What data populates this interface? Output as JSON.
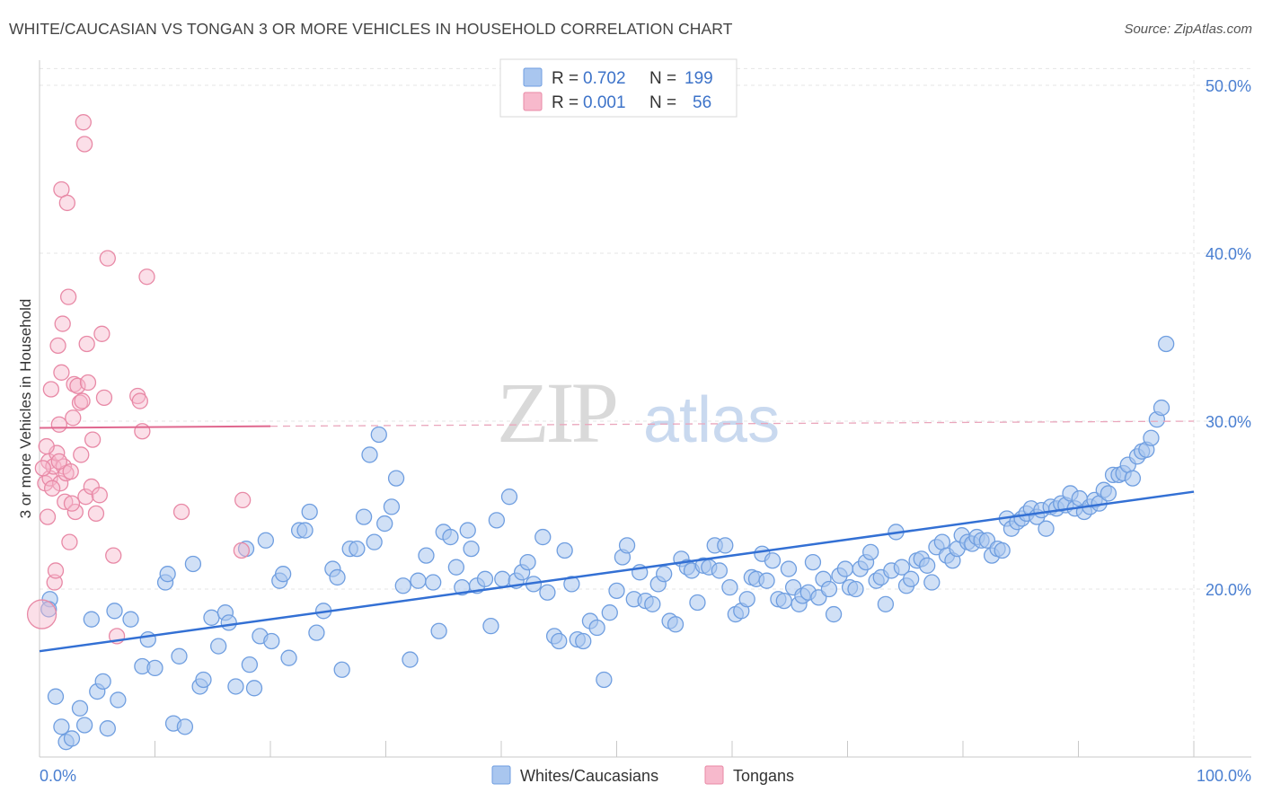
{
  "title": "WHITE/CAUCASIAN VS TONGAN 3 OR MORE VEHICLES IN HOUSEHOLD CORRELATION CHART",
  "source": "Source: ZipAtlas.com",
  "watermark": {
    "zip": "ZIP",
    "atlas": "atlas"
  },
  "legend": {
    "r_label": "R = ",
    "n_label": "N = ",
    "items": [
      {
        "r": "0.702",
        "n": "199",
        "color": "#a9c6ef",
        "stroke": "#6f9ee0"
      },
      {
        "r": "0.001",
        "n": "56",
        "color": "#f7b9cc",
        "stroke": "#e889a6"
      }
    ]
  },
  "bottom_legend": [
    {
      "name": "Whites/Caucasians",
      "color": "#a9c6ef",
      "stroke": "#6f9ee0"
    },
    {
      "name": "Tongans",
      "color": "#f7b9cc",
      "stroke": "#e889a6"
    }
  ],
  "chart_data": {
    "type": "scatter",
    "title": "WHITE/CAUCASIAN VS TONGAN 3 OR MORE VEHICLES IN HOUSEHOLD CORRELATION CHART",
    "xlabel": "",
    "ylabel": "3 or more Vehicles in Household",
    "xlim": [
      0,
      100
    ],
    "ylim": [
      10,
      51.5
    ],
    "x_ticks": [
      0,
      100
    ],
    "x_tick_labels": [
      "0.0%",
      "100.0%"
    ],
    "y_ticks": [
      20,
      30,
      40,
      50
    ],
    "y_tick_labels": [
      "20.0%",
      "30.0%",
      "40.0%",
      "50.0%"
    ],
    "grid": true,
    "legend_placement": "top-center",
    "colors": {
      "white": "#3370d4",
      "tongan": "#e0688f"
    },
    "series": [
      {
        "name": "Whites/Caucasians",
        "r": 0.702,
        "n": 199,
        "trend": {
          "x": [
            0,
            100
          ],
          "y": [
            16.3,
            25.8
          ]
        },
        "points": [
          [
            0.9,
            19.4
          ],
          [
            1.4,
            13.6
          ],
          [
            1.9,
            11.8
          ],
          [
            2.3,
            10.9
          ],
          [
            2.8,
            11.1
          ],
          [
            3.5,
            12.9
          ],
          [
            3.9,
            11.9
          ],
          [
            4.5,
            18.2
          ],
          [
            5.0,
            13.9
          ],
          [
            5.5,
            14.5
          ],
          [
            5.9,
            11.7
          ],
          [
            6.5,
            18.7
          ],
          [
            6.8,
            13.4
          ],
          [
            7.9,
            18.2
          ],
          [
            8.9,
            15.4
          ],
          [
            9.4,
            17.0
          ],
          [
            10.0,
            15.3
          ],
          [
            10.9,
            20.4
          ],
          [
            11.1,
            20.9
          ],
          [
            11.6,
            12.0
          ],
          [
            12.1,
            16.0
          ],
          [
            12.6,
            11.8
          ],
          [
            13.3,
            21.5
          ],
          [
            13.9,
            14.2
          ],
          [
            14.2,
            14.6
          ],
          [
            14.9,
            18.3
          ],
          [
            15.5,
            16.6
          ],
          [
            16.1,
            18.6
          ],
          [
            16.4,
            18.0
          ],
          [
            17.0,
            14.2
          ],
          [
            17.9,
            22.4
          ],
          [
            18.2,
            15.5
          ],
          [
            18.6,
            14.1
          ],
          [
            19.1,
            17.2
          ],
          [
            19.6,
            22.9
          ],
          [
            20.1,
            16.9
          ],
          [
            20.8,
            20.5
          ],
          [
            21.1,
            20.9
          ],
          [
            21.6,
            15.9
          ],
          [
            22.5,
            23.5
          ],
          [
            23.0,
            23.5
          ],
          [
            23.4,
            24.6
          ],
          [
            24.0,
            17.4
          ],
          [
            24.6,
            18.7
          ],
          [
            25.4,
            21.2
          ],
          [
            25.8,
            20.7
          ],
          [
            26.2,
            15.2
          ],
          [
            26.9,
            22.4
          ],
          [
            27.5,
            22.4
          ],
          [
            28.1,
            24.3
          ],
          [
            28.6,
            28.0
          ],
          [
            29.0,
            22.8
          ],
          [
            29.4,
            29.2
          ],
          [
            29.9,
            23.9
          ],
          [
            30.5,
            24.9
          ],
          [
            30.9,
            26.6
          ],
          [
            31.5,
            20.2
          ],
          [
            32.1,
            15.8
          ],
          [
            32.8,
            20.5
          ],
          [
            33.5,
            22.0
          ],
          [
            34.1,
            20.4
          ],
          [
            34.6,
            17.5
          ],
          [
            35.0,
            23.4
          ],
          [
            35.6,
            23.1
          ],
          [
            36.1,
            21.3
          ],
          [
            36.6,
            20.1
          ],
          [
            37.1,
            23.5
          ],
          [
            37.4,
            22.4
          ],
          [
            37.9,
            20.2
          ],
          [
            38.6,
            20.6
          ],
          [
            39.1,
            17.8
          ],
          [
            39.6,
            24.1
          ],
          [
            40.1,
            20.6
          ],
          [
            40.7,
            25.5
          ],
          [
            41.3,
            20.5
          ],
          [
            41.8,
            21.0
          ],
          [
            42.3,
            21.6
          ],
          [
            42.8,
            20.3
          ],
          [
            43.6,
            23.1
          ],
          [
            44.0,
            19.8
          ],
          [
            44.6,
            17.2
          ],
          [
            45.0,
            16.9
          ],
          [
            45.5,
            22.3
          ],
          [
            46.1,
            20.3
          ],
          [
            46.6,
            17.0
          ],
          [
            47.1,
            16.9
          ],
          [
            47.7,
            18.1
          ],
          [
            48.3,
            17.7
          ],
          [
            48.9,
            14.6
          ],
          [
            49.4,
            18.6
          ],
          [
            50.0,
            19.9
          ],
          [
            50.5,
            21.9
          ],
          [
            50.9,
            22.6
          ],
          [
            51.5,
            19.4
          ],
          [
            52.0,
            21.0
          ],
          [
            52.5,
            19.3
          ],
          [
            53.1,
            19.1
          ],
          [
            53.6,
            20.3
          ],
          [
            54.1,
            20.9
          ],
          [
            54.6,
            18.1
          ],
          [
            55.1,
            17.9
          ],
          [
            55.6,
            21.8
          ],
          [
            56.1,
            21.3
          ],
          [
            56.5,
            21.1
          ],
          [
            57.0,
            19.2
          ],
          [
            57.5,
            21.4
          ],
          [
            58.0,
            21.3
          ],
          [
            58.5,
            22.6
          ],
          [
            58.9,
            21.1
          ],
          [
            59.4,
            22.6
          ],
          [
            59.8,
            20.1
          ],
          [
            60.3,
            18.5
          ],
          [
            60.8,
            18.7
          ],
          [
            61.3,
            19.4
          ],
          [
            61.7,
            20.7
          ],
          [
            62.1,
            20.6
          ],
          [
            62.6,
            22.1
          ],
          [
            63.0,
            20.5
          ],
          [
            63.5,
            21.7
          ],
          [
            64.0,
            19.4
          ],
          [
            64.5,
            19.3
          ],
          [
            64.9,
            21.2
          ],
          [
            65.3,
            20.1
          ],
          [
            65.8,
            19.1
          ],
          [
            66.1,
            19.6
          ],
          [
            66.6,
            19.8
          ],
          [
            67.0,
            21.6
          ],
          [
            67.5,
            19.5
          ],
          [
            67.9,
            20.6
          ],
          [
            68.4,
            20.0
          ],
          [
            68.8,
            18.5
          ],
          [
            69.3,
            20.8
          ],
          [
            69.8,
            21.2
          ],
          [
            70.2,
            20.1
          ],
          [
            70.7,
            20.0
          ],
          [
            71.1,
            21.2
          ],
          [
            71.6,
            21.6
          ],
          [
            72.0,
            22.2
          ],
          [
            72.5,
            20.5
          ],
          [
            72.9,
            20.7
          ],
          [
            73.3,
            19.1
          ],
          [
            73.8,
            21.1
          ],
          [
            74.2,
            23.4
          ],
          [
            74.7,
            21.3
          ],
          [
            75.1,
            20.2
          ],
          [
            75.5,
            20.6
          ],
          [
            76.0,
            21.7
          ],
          [
            76.4,
            21.8
          ],
          [
            76.9,
            21.4
          ],
          [
            77.3,
            20.4
          ],
          [
            77.7,
            22.5
          ],
          [
            78.2,
            22.8
          ],
          [
            78.6,
            22.0
          ],
          [
            79.1,
            21.7
          ],
          [
            79.5,
            22.4
          ],
          [
            79.9,
            23.2
          ],
          [
            80.4,
            22.8
          ],
          [
            80.8,
            22.7
          ],
          [
            81.2,
            23.1
          ],
          [
            81.6,
            22.9
          ],
          [
            82.1,
            22.9
          ],
          [
            82.5,
            22.0
          ],
          [
            83.0,
            22.4
          ],
          [
            83.4,
            22.3
          ],
          [
            83.8,
            24.2
          ],
          [
            84.2,
            23.6
          ],
          [
            84.7,
            24.0
          ],
          [
            85.1,
            24.2
          ],
          [
            85.5,
            24.5
          ],
          [
            85.9,
            24.8
          ],
          [
            86.4,
            24.3
          ],
          [
            86.8,
            24.7
          ],
          [
            87.2,
            23.6
          ],
          [
            87.6,
            24.9
          ],
          [
            88.1,
            24.8
          ],
          [
            88.5,
            25.1
          ],
          [
            88.9,
            25.0
          ],
          [
            89.3,
            25.7
          ],
          [
            89.7,
            24.8
          ],
          [
            90.1,
            25.4
          ],
          [
            90.5,
            24.6
          ],
          [
            91.0,
            24.9
          ],
          [
            91.4,
            25.3
          ],
          [
            91.8,
            25.1
          ],
          [
            92.2,
            25.9
          ],
          [
            92.6,
            25.7
          ],
          [
            93.0,
            26.8
          ],
          [
            93.5,
            26.8
          ],
          [
            93.9,
            26.9
          ],
          [
            94.3,
            27.4
          ],
          [
            94.7,
            26.6
          ],
          [
            95.1,
            27.9
          ],
          [
            95.5,
            28.2
          ],
          [
            95.9,
            28.3
          ],
          [
            96.3,
            29.0
          ],
          [
            96.8,
            30.1
          ],
          [
            97.2,
            30.8
          ],
          [
            97.6,
            34.6
          ],
          [
            0.8,
            18.8
          ]
        ]
      },
      {
        "name": "Tongans",
        "r": 0.001,
        "n": 56,
        "trend": {
          "x": [
            0,
            20
          ],
          "y": [
            29.6,
            29.7
          ]
        },
        "trend_dashed_extension": {
          "x": [
            20,
            100
          ],
          "y": [
            29.7,
            30.0
          ]
        },
        "points": [
          [
            0.2,
            18.5
          ],
          [
            0.5,
            26.3
          ],
          [
            0.7,
            24.3
          ],
          [
            0.8,
            27.6
          ],
          [
            0.9,
            26.6
          ],
          [
            1.0,
            31.9
          ],
          [
            1.2,
            27.3
          ],
          [
            1.3,
            20.4
          ],
          [
            1.4,
            21.1
          ],
          [
            1.5,
            28.1
          ],
          [
            1.6,
            34.5
          ],
          [
            1.7,
            29.8
          ],
          [
            1.8,
            26.3
          ],
          [
            1.9,
            32.9
          ],
          [
            1.9,
            43.8
          ],
          [
            2.0,
            35.8
          ],
          [
            2.1,
            27.3
          ],
          [
            2.2,
            25.2
          ],
          [
            2.3,
            26.9
          ],
          [
            2.4,
            43.0
          ],
          [
            2.5,
            37.4
          ],
          [
            2.6,
            22.8
          ],
          [
            2.7,
            27.0
          ],
          [
            2.9,
            30.2
          ],
          [
            3.0,
            32.2
          ],
          [
            3.1,
            24.6
          ],
          [
            3.3,
            32.1
          ],
          [
            3.5,
            31.1
          ],
          [
            3.7,
            31.2
          ],
          [
            3.8,
            47.8
          ],
          [
            3.9,
            46.5
          ],
          [
            4.0,
            25.5
          ],
          [
            4.1,
            34.6
          ],
          [
            4.2,
            32.3
          ],
          [
            4.5,
            26.1
          ],
          [
            4.6,
            28.9
          ],
          [
            4.9,
            24.5
          ],
          [
            5.2,
            25.6
          ],
          [
            5.4,
            35.2
          ],
          [
            5.6,
            31.4
          ],
          [
            5.9,
            39.7
          ],
          [
            6.4,
            22.0
          ],
          [
            6.7,
            17.2
          ],
          [
            8.5,
            31.5
          ],
          [
            8.7,
            31.2
          ],
          [
            8.9,
            29.4
          ],
          [
            9.3,
            38.6
          ],
          [
            12.3,
            24.6
          ],
          [
            17.5,
            22.3
          ],
          [
            17.6,
            25.3
          ],
          [
            1.1,
            26.0
          ],
          [
            0.3,
            27.2
          ],
          [
            0.6,
            28.5
          ],
          [
            1.7,
            27.6
          ],
          [
            2.8,
            25.1
          ],
          [
            3.6,
            28.0
          ]
        ]
      }
    ]
  }
}
